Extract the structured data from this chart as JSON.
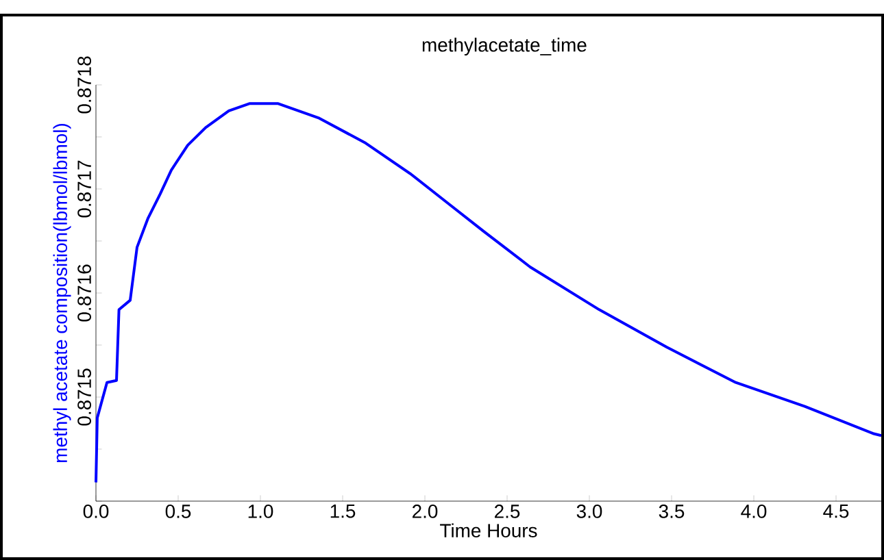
{
  "chart_data": {
    "type": "line",
    "title": "methylacetate_time",
    "xlabel": "Time Hours",
    "ylabel": "methyl acetate composition(lbmol/lbmol)",
    "x": [
      0,
      0.008,
      0.067,
      0.125,
      0.14,
      0.208,
      0.25,
      0.317,
      0.39,
      0.458,
      0.558,
      0.667,
      0.808,
      0.933,
      1.108,
      1.358,
      1.64,
      1.917,
      2.15,
      2.36,
      2.64,
      3.06,
      3.47,
      3.89,
      4.31,
      4.725,
      4.775
    ],
    "series": [
      {
        "color": "#0000ff",
        "values": [
          0.871418,
          0.87148,
          0.871514,
          0.871516,
          0.871584,
          0.871593,
          0.871644,
          0.871672,
          0.871695,
          0.871718,
          0.871742,
          0.871759,
          0.871775,
          0.871782,
          0.871782,
          0.871768,
          0.871744,
          0.871714,
          0.871685,
          0.871659,
          0.871625,
          0.871584,
          0.871548,
          0.871514,
          0.871491,
          0.871465,
          0.871463
        ]
      }
    ],
    "xlim": [
      0,
      4.775
    ],
    "ylim": [
      0.8714,
      0.8718
    ],
    "xticks": [
      {
        "value": 0,
        "label": "0.0"
      },
      0.5,
      {
        "value": 1,
        "label": "1.0"
      },
      1.5,
      {
        "value": 2,
        "label": "2.0"
      },
      2.5,
      {
        "value": 3,
        "label": "3.0"
      },
      3.5,
      {
        "value": 4,
        "label": "4.0"
      },
      4.5
    ],
    "yticks": [
      {
        "value": 0.8714,
        "label": null
      },
      {
        "value": 0.87145,
        "label": null
      },
      0.8715,
      {
        "value": 0.87155,
        "label": null
      },
      0.8716,
      {
        "value": 0.87165,
        "label": null
      },
      0.8717,
      {
        "value": 0.87175,
        "label": null
      },
      0.8718
    ],
    "grid": false,
    "marker": "none",
    "line_style": "solid"
  }
}
